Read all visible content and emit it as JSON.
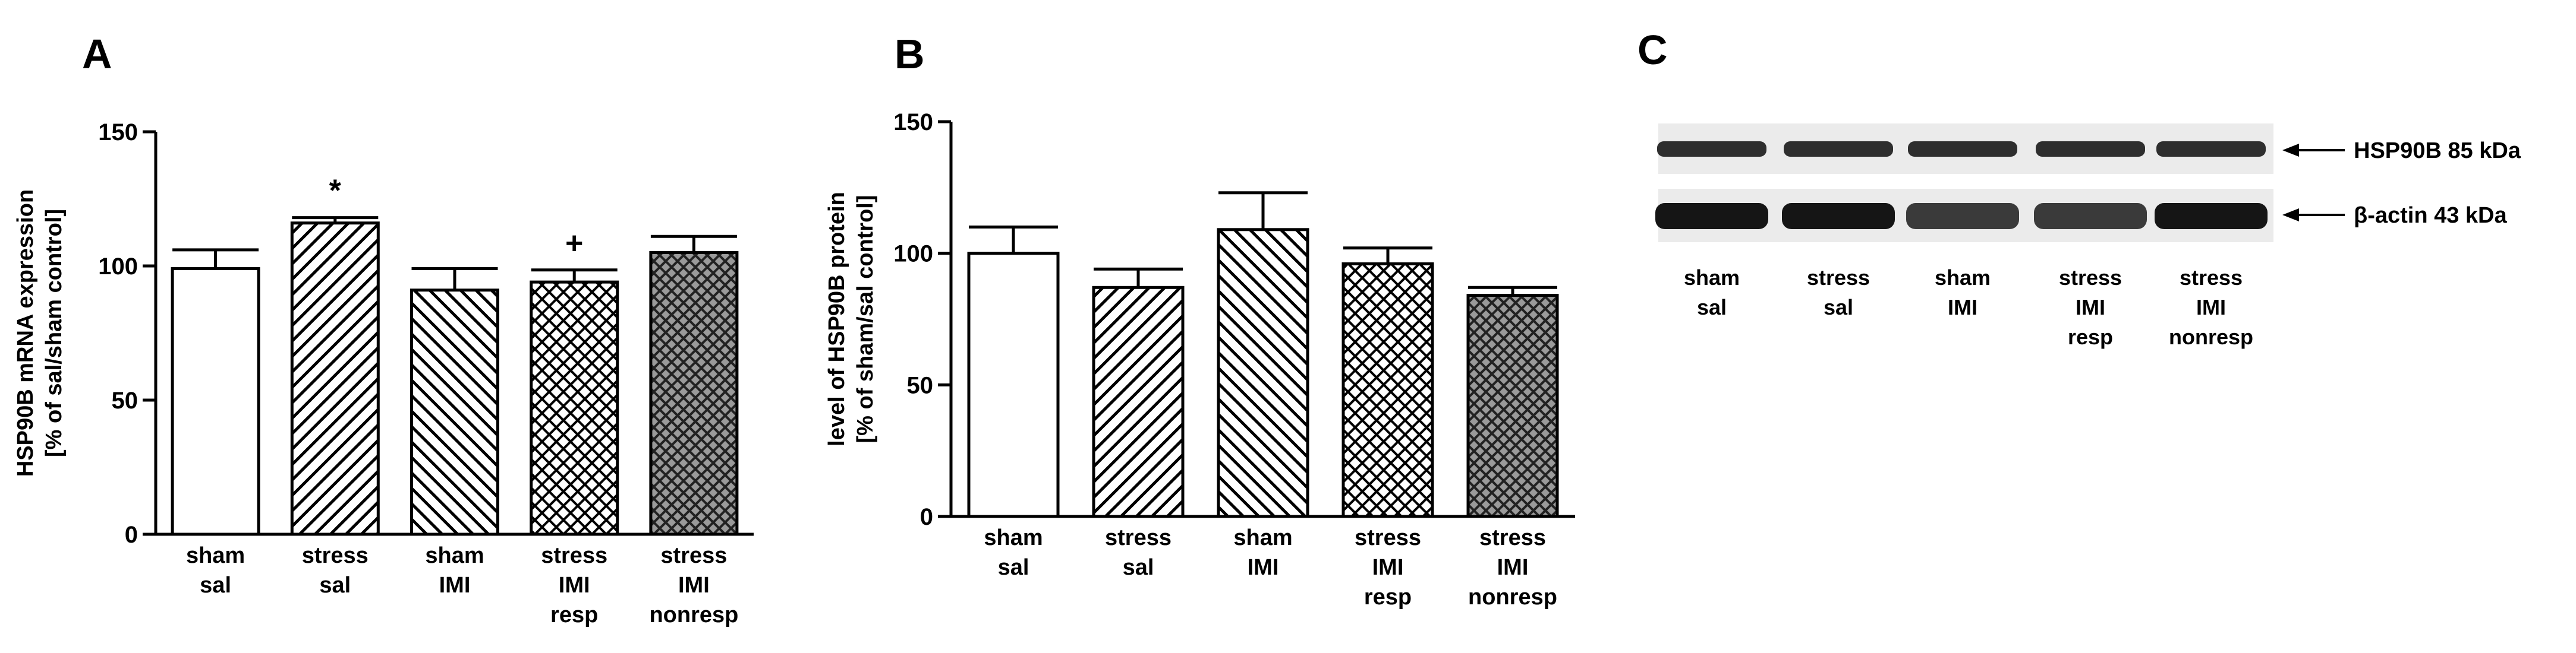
{
  "panels": {
    "A": {
      "letter": "A"
    },
    "B": {
      "letter": "B"
    },
    "C": {
      "letter": "C"
    }
  },
  "chart_data": [
    {
      "panel": "A",
      "type": "bar",
      "ylabel_lines": [
        "HSP90B mRNA expression",
        "[% of sal/sham control]"
      ],
      "ylim": [
        0,
        150
      ],
      "yticks": [
        0,
        50,
        100,
        150
      ],
      "categories": [
        [
          "sham",
          "sal"
        ],
        [
          "stress",
          "sal"
        ],
        [
          "sham",
          "IMI"
        ],
        [
          "stress",
          "IMI",
          "resp"
        ],
        [
          "stress",
          "IMI",
          "nonresp"
        ]
      ],
      "values": [
        99,
        116,
        91,
        94,
        105
      ],
      "errors": [
        7,
        2,
        8,
        4.5,
        6
      ],
      "patterns": [
        "none",
        "diag-up",
        "diag-down",
        "cross",
        "cross-dark"
      ],
      "annotations": [
        "",
        "*",
        "",
        "+",
        ""
      ]
    },
    {
      "panel": "B",
      "type": "bar",
      "ylabel_lines": [
        "level of HSP90B protein",
        "[% of sham/sal control]"
      ],
      "ylim": [
        0,
        150
      ],
      "yticks": [
        0,
        50,
        100,
        150
      ],
      "categories": [
        [
          "sham",
          "sal"
        ],
        [
          "stress",
          "sal"
        ],
        [
          "sham",
          "IMI"
        ],
        [
          "stress",
          "IMI",
          "resp"
        ],
        [
          "stress",
          "IMI",
          "nonresp"
        ]
      ],
      "values": [
        100,
        87,
        109,
        96,
        84
      ],
      "errors": [
        10,
        7,
        14,
        6,
        3
      ],
      "patterns": [
        "none",
        "diag-up",
        "diag-down",
        "cross",
        "cross-dark"
      ],
      "annotations": [
        "",
        "",
        "",
        "",
        ""
      ]
    }
  ],
  "blot": {
    "bands": [
      {
        "label": "HSP90B 85 kDa"
      },
      {
        "label": "β-actin 43 kDa"
      }
    ],
    "lanes": [
      [
        "sham",
        "sal"
      ],
      [
        "stress",
        "sal"
      ],
      [
        "sham",
        "IMI"
      ],
      [
        "stress",
        "IMI",
        "resp"
      ],
      [
        "stress",
        "IMI",
        "nonresp"
      ]
    ]
  }
}
